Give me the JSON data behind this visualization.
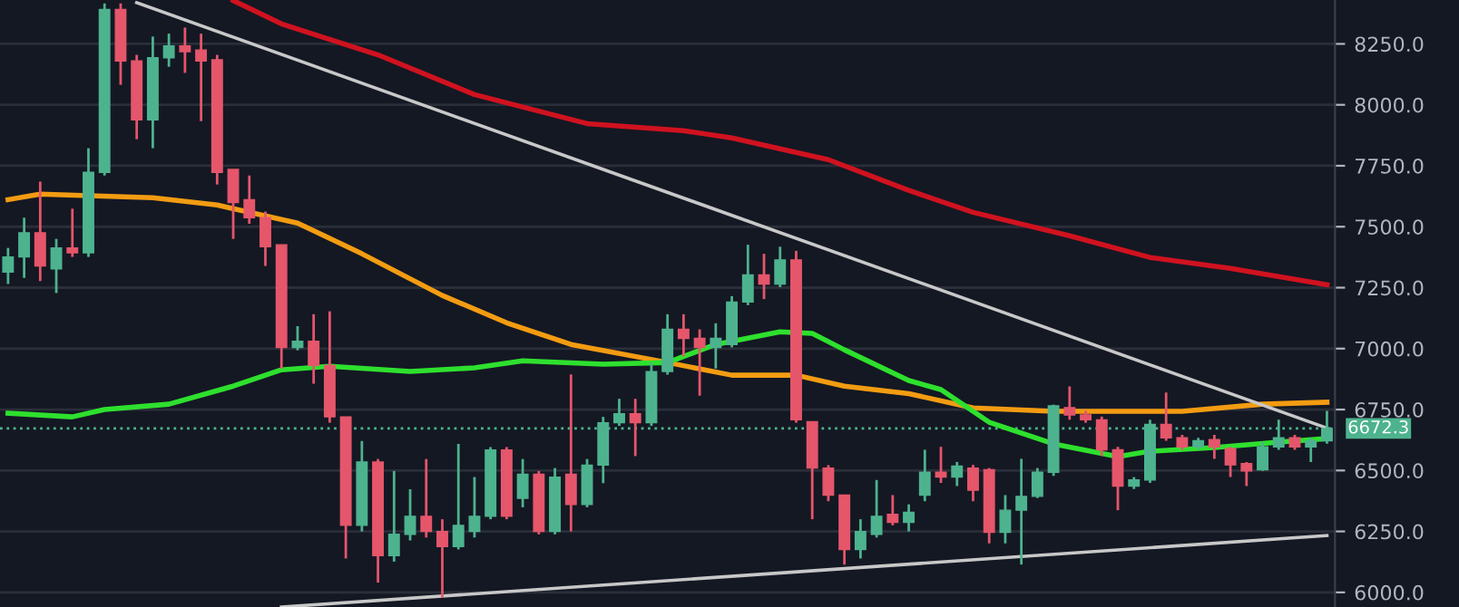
{
  "chart_data": {
    "type": "candlestick",
    "categories": [
      null,
      null,
      null,
      null,
      null,
      null,
      null,
      null,
      null,
      null,
      null,
      null,
      null,
      null,
      null,
      null,
      null,
      null,
      null,
      null,
      null,
      null,
      null,
      null,
      null,
      null,
      null,
      null,
      null,
      null,
      null,
      null,
      null,
      null,
      null,
      null,
      null,
      null,
      null,
      null,
      null,
      null,
      null,
      null,
      null,
      null,
      null,
      null,
      null,
      null,
      null,
      null,
      null,
      null,
      null,
      null,
      null,
      null,
      null,
      null,
      null,
      null,
      null,
      null,
      null,
      null,
      null,
      null,
      null,
      null,
      null,
      null,
      null,
      null,
      null,
      null,
      null,
      null,
      null,
      null,
      null,
      null,
      null
    ],
    "ohlc": [
      [
        7314,
        7413,
        7265,
        7376
      ],
      [
        7376,
        7537,
        7290,
        7475
      ],
      [
        7475,
        7685,
        7277,
        7339
      ],
      [
        7327,
        7450,
        7228,
        7413
      ],
      [
        7413,
        7574,
        7376,
        7393
      ],
      [
        7393,
        7822,
        7376,
        7723
      ],
      [
        7723,
        8416,
        7710,
        8391
      ],
      [
        8391,
        8416,
        8082,
        8180
      ],
      [
        8180,
        8205,
        7859,
        7938
      ],
      [
        7938,
        8280,
        7822,
        8193
      ],
      [
        8193,
        8292,
        8156,
        8242
      ],
      [
        8242,
        8317,
        8131,
        8218
      ],
      [
        8225,
        8292,
        7933,
        8180
      ],
      [
        8185,
        8205,
        7673,
        7723
      ],
      [
        7735,
        7735,
        7450,
        7599
      ],
      [
        7611,
        7710,
        7512,
        7537
      ],
      [
        7537,
        7562,
        7339,
        7418
      ],
      [
        7426,
        7426,
        6918,
        7005
      ],
      [
        7005,
        7092,
        6993,
        7030
      ],
      [
        7030,
        7141,
        6856,
        6931
      ],
      [
        6931,
        7153,
        6696,
        6720
      ],
      [
        6720,
        6720,
        6139,
        6275
      ],
      [
        6275,
        6621,
        6250,
        6535
      ],
      [
        6535,
        6547,
        6040,
        6151
      ],
      [
        6151,
        6498,
        6126,
        6238
      ],
      [
        6238,
        6423,
        6213,
        6312
      ],
      [
        6312,
        6547,
        6225,
        6250
      ],
      [
        6250,
        6300,
        5978,
        6188
      ],
      [
        6188,
        6609,
        6176,
        6275
      ],
      [
        6250,
        6473,
        6225,
        6312
      ],
      [
        6312,
        6596,
        6300,
        6584
      ],
      [
        6584,
        6596,
        6300,
        6312
      ],
      [
        6386,
        6547,
        6349,
        6485
      ],
      [
        6485,
        6498,
        6238,
        6250
      ],
      [
        6250,
        6510,
        6238,
        6473
      ],
      [
        6485,
        6894,
        6250,
        6361
      ],
      [
        6361,
        6547,
        6349,
        6522
      ],
      [
        6522,
        6720,
        6448,
        6696
      ],
      [
        6696,
        6794,
        6683,
        6733
      ],
      [
        6733,
        6794,
        6559,
        6696
      ],
      [
        6696,
        6943,
        6683,
        6906
      ],
      [
        6906,
        7141,
        6893,
        7079
      ],
      [
        7079,
        7141,
        6968,
        7042
      ],
      [
        7042,
        7079,
        6807,
        7005
      ],
      [
        7005,
        7104,
        6918,
        7042
      ],
      [
        7017,
        7215,
        7005,
        7191
      ],
      [
        7191,
        7426,
        7178,
        7302
      ],
      [
        7302,
        7389,
        7203,
        7265
      ],
      [
        7265,
        7418,
        7252,
        7364
      ],
      [
        7364,
        7401,
        6696,
        6708
      ],
      [
        6700,
        6700,
        6300,
        6510
      ],
      [
        6510,
        6522,
        6374,
        6399
      ],
      [
        6399,
        6399,
        6114,
        6176
      ],
      [
        6176,
        6300,
        6139,
        6250
      ],
      [
        6238,
        6461,
        6225,
        6312
      ],
      [
        6320,
        6399,
        6275,
        6287
      ],
      [
        6287,
        6361,
        6250,
        6329
      ],
      [
        6399,
        6585,
        6374,
        6493
      ],
      [
        6493,
        6597,
        6449,
        6473
      ],
      [
        6473,
        6535,
        6436,
        6518
      ],
      [
        6510,
        6523,
        6374,
        6419
      ],
      [
        6503,
        6510,
        6201,
        6246
      ],
      [
        6246,
        6399,
        6201,
        6337
      ],
      [
        6337,
        6548,
        6114,
        6394
      ],
      [
        6394,
        6510,
        6387,
        6493
      ],
      [
        6493,
        6770,
        6478,
        6765
      ],
      [
        6758,
        6845,
        6708,
        6728
      ],
      [
        6728,
        6745,
        6696,
        6708
      ],
      [
        6708,
        6721,
        6560,
        6585
      ],
      [
        6585,
        6597,
        6337,
        6436
      ],
      [
        6436,
        6473,
        6424,
        6461
      ],
      [
        6461,
        6708,
        6449,
        6689
      ],
      [
        6689,
        6820,
        6622,
        6634
      ],
      [
        6634,
        6646,
        6585,
        6597
      ],
      [
        6597,
        6634,
        6585,
        6622
      ],
      [
        6627,
        6646,
        6548,
        6597
      ],
      [
        6590,
        6597,
        6473,
        6523
      ],
      [
        6528,
        6535,
        6436,
        6498
      ],
      [
        6503,
        6617,
        6498,
        6597
      ],
      [
        6597,
        6708,
        6585,
        6634
      ],
      [
        6634,
        6646,
        6585,
        6597
      ],
      [
        6597,
        6634,
        6535,
        6622
      ],
      [
        6622,
        6745,
        6610,
        6672
      ]
    ],
    "colors": [
      "#4db38e",
      "#4db38e",
      "#e5566b",
      "#4db38e",
      "#e5566b",
      "#4db38e",
      "#4db38e",
      "#e5566b",
      "#e5566b",
      "#4db38e",
      "#4db38e",
      "#e5566b",
      "#e5566b",
      "#e5566b",
      "#e5566b",
      "#e5566b",
      "#e5566b",
      "#e5566b",
      "#4db38e",
      "#e5566b",
      "#e5566b",
      "#e5566b",
      "#4db38e",
      "#e5566b",
      "#4db38e",
      "#4db38e",
      "#e5566b",
      "#e5566b",
      "#4db38e",
      "#4db38e",
      "#4db38e",
      "#e5566b",
      "#4db38e",
      "#e5566b",
      "#4db38e",
      "#e5566b",
      "#4db38e",
      "#4db38e",
      "#4db38e",
      "#e5566b",
      "#4db38e",
      "#4db38e",
      "#e5566b",
      "#e5566b",
      "#4db38e",
      "#4db38e",
      "#4db38e",
      "#e5566b",
      "#4db38e",
      "#e5566b",
      "#e5566b",
      "#e5566b",
      "#e5566b",
      "#4db38e",
      "#4db38e",
      "#e5566b",
      "#4db38e",
      "#4db38e",
      "#e5566b",
      "#4db38e",
      "#e5566b",
      "#e5566b",
      "#4db38e",
      "#4db38e",
      "#4db38e",
      "#4db38e",
      "#e5566b",
      "#e5566b",
      "#e5566b",
      "#e5566b",
      "#4db38e",
      "#4db38e",
      "#e5566b",
      "#e5566b",
      "#4db38e",
      "#e5566b",
      "#e5566b",
      "#e5566b",
      "#4db38e",
      "#4db38e",
      "#e5566b",
      "#4db38e",
      "#4db38e"
    ],
    "series": [
      {
        "type": "line",
        "color": "#d0121f",
        "values": [
          null,
          null,
          null,
          null,
          null,
          null,
          null,
          null,
          null,
          null,
          null,
          null,
          null,
          null,
          8428,
          null,
          null,
          8332,
          null,
          null,
          null,
          null,
          null,
          8205,
          null,
          null,
          null,
          null,
          null,
          8042,
          null,
          null,
          null,
          null,
          null,
          null,
          7923,
          null,
          null,
          null,
          null,
          null,
          7894,
          null,
          null,
          7864,
          null,
          null,
          null,
          null,
          null,
          7775,
          null,
          null,
          null,
          null,
          7649,
          null,
          null,
          null,
          7559,
          null,
          null,
          null,
          null,
          null,
          7463,
          null,
          null,
          null,
          null,
          7374,
          null,
          null,
          null,
          null,
          7329,
          null,
          null,
          null,
          null,
          null,
          7262
        ]
      },
      {
        "type": "line",
        "color": "#f39c12",
        "values": [
          7611,
          null,
          7634,
          null,
          null,
          null,
          null,
          null,
          null,
          7619,
          null,
          null,
          null,
          7589,
          null,
          null,
          null,
          null,
          7515,
          null,
          null,
          null,
          7389,
          null,
          null,
          null,
          null,
          7218,
          null,
          null,
          null,
          7106,
          null,
          null,
          null,
          7017,
          null,
          null,
          null,
          null,
          null,
          6943,
          null,
          null,
          null,
          6891,
          null,
          null,
          null,
          6891,
          null,
          null,
          6846,
          null,
          null,
          null,
          6815,
          null,
          null,
          null,
          6757,
          null,
          null,
          null,
          null,
          6743,
          null,
          null,
          null,
          6743,
          null,
          null,
          null,
          6743,
          null,
          null,
          null,
          null,
          6772,
          null,
          null,
          null,
          6780
        ]
      },
      {
        "type": "line",
        "color": "#2ee02e",
        "values": [
          6735,
          null,
          null,
          null,
          6720,
          null,
          6750,
          null,
          null,
          null,
          6772,
          null,
          null,
          null,
          6846,
          null,
          null,
          6913,
          null,
          null,
          6928,
          null,
          null,
          null,
          null,
          6906,
          null,
          null,
          null,
          6921,
          null,
          null,
          6950,
          null,
          null,
          null,
          null,
          6936,
          null,
          null,
          null,
          6943,
          null,
          null,
          7017,
          null,
          null,
          null,
          7069,
          null,
          7062,
          null,
          6995,
          null,
          null,
          null,
          6869,
          null,
          6832,
          null,
          null,
          6698,
          null,
          null,
          null,
          6609,
          null,
          null,
          null,
          6557,
          null,
          6579,
          null,
          null,
          null,
          6594,
          null,
          null,
          null,
          6616,
          null,
          null,
          6631
        ]
      },
      {
        "type": "line",
        "color": "#c8c8c8",
        "values": [
          null,
          null,
          null,
          null,
          null,
          null,
          null,
          null,
          8419,
          null,
          null,
          null,
          null,
          null,
          null,
          null,
          null,
          null,
          null,
          null,
          null,
          null,
          null,
          null,
          null,
          null,
          null,
          null,
          null,
          null,
          null,
          null,
          null,
          null,
          null,
          null,
          null,
          null,
          null,
          null,
          null,
          null,
          null,
          null,
          null,
          null,
          null,
          null,
          null,
          null,
          null,
          null,
          null,
          null,
          null,
          null,
          null,
          null,
          null,
          null,
          null,
          null,
          null,
          null,
          null,
          null,
          null,
          null,
          null,
          null,
          null,
          null,
          null,
          null,
          null,
          null,
          null,
          null,
          null,
          null,
          null,
          null,
          6674
        ]
      },
      {
        "type": "line",
        "color": "#c8c8c8",
        "values": [
          null,
          null,
          null,
          null,
          null,
          null,
          null,
          null,
          null,
          null,
          null,
          null,
          null,
          null,
          null,
          null,
          null,
          5940,
          null,
          null,
          null,
          null,
          null,
          null,
          null,
          null,
          null,
          null,
          null,
          null,
          null,
          null,
          null,
          null,
          null,
          null,
          null,
          null,
          null,
          null,
          null,
          null,
          null,
          null,
          null,
          null,
          null,
          null,
          null,
          null,
          null,
          null,
          null,
          null,
          null,
          null,
          null,
          null,
          null,
          null,
          null,
          null,
          null,
          null,
          null,
          null,
          null,
          null,
          null,
          null,
          null,
          null,
          null,
          null,
          null,
          null,
          null,
          null,
          null,
          null,
          null,
          null,
          6233
        ]
      }
    ],
    "ref_lines": [
      {
        "axis": "y",
        "value": 6672.3,
        "label": "6672.3",
        "color": "#4db38e",
        "line_style": "dotted"
      }
    ],
    "ylim": [
      5940,
      8430
    ],
    "yticks": [
      {
        "value": 6000,
        "label": "6000.0"
      },
      {
        "value": 6250,
        "label": "6250.0"
      },
      {
        "value": 6500,
        "label": "6500.0"
      },
      {
        "value": 6750,
        "label": "6750.0"
      },
      {
        "value": 7000,
        "label": "7000.0"
      },
      {
        "value": 7250,
        "label": "7250.0"
      },
      {
        "value": 7500,
        "label": "7500.0"
      },
      {
        "value": 7750,
        "label": "7750.0"
      },
      {
        "value": 8000,
        "label": "8000.0"
      },
      {
        "value": 8250,
        "label": "8250.0"
      }
    ],
    "grid": "y",
    "tick_labels": "y"
  }
}
